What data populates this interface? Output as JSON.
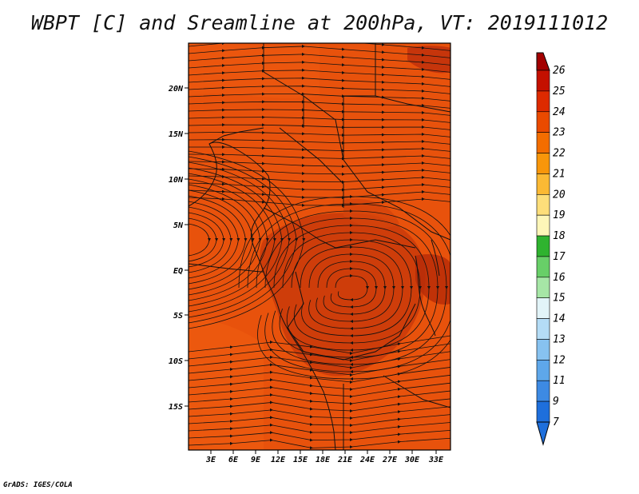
{
  "title": "WBPT [C] and Sreamline at 200hPa, VT: 2019111012",
  "credit": "GrADS: IGES/COLA",
  "map": {
    "lat_labels": [
      "20N",
      "15N",
      "10N",
      "5N",
      "EQ",
      "5S",
      "10S",
      "15S"
    ],
    "lon_labels": [
      "3E",
      "6E",
      "9E",
      "12E",
      "15E",
      "18E",
      "21E",
      "24E",
      "27E",
      "30E",
      "33E"
    ],
    "base_color": "#e8520c"
  },
  "colorbar": {
    "levels": [
      "26",
      "25",
      "24",
      "23",
      "22",
      "21",
      "20",
      "19",
      "18",
      "17",
      "16",
      "15",
      "14",
      "13",
      "12",
      "11",
      "9",
      "7"
    ],
    "colors": [
      "#a30000",
      "#c41000",
      "#dd2a00",
      "#ea4a00",
      "#f36d00",
      "#f8960a",
      "#fbb934",
      "#fdde7a",
      "#fdf6b8",
      "#2fb32f",
      "#68cf68",
      "#a6e6a6",
      "#e2f4f8",
      "#b4dcf6",
      "#87c2f0",
      "#5ea7ea",
      "#3d8ae3",
      "#1e6fdc"
    ]
  }
}
